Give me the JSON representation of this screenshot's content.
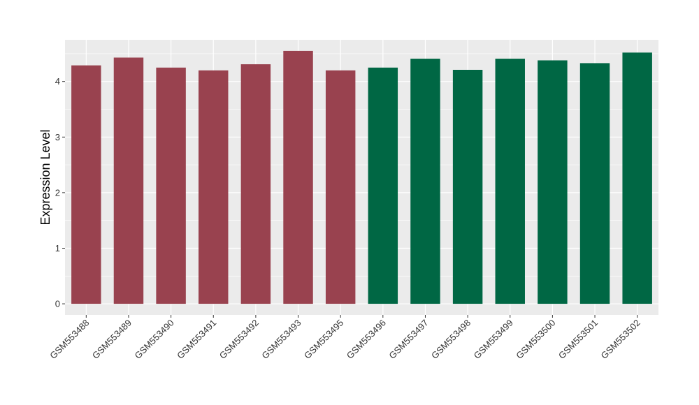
{
  "chart_data": {
    "type": "bar",
    "title": "",
    "xlabel": "",
    "ylabel": "Expression Level",
    "ylim": [
      -0.2,
      4.75
    ],
    "yticks": [
      0,
      1,
      2,
      3,
      4
    ],
    "ytick_labels": [
      "0",
      "1",
      "2",
      "3",
      "4"
    ],
    "grid": true,
    "legend": "none",
    "categories": [
      "GSM553488",
      "GSM553489",
      "GSM553490",
      "GSM553491",
      "GSM553492",
      "GSM553493",
      "GSM553495",
      "GSM553496",
      "GSM553497",
      "GSM553498",
      "GSM553499",
      "GSM553500",
      "GSM553501",
      "GSM553502"
    ],
    "values": [
      4.29,
      4.43,
      4.25,
      4.2,
      4.31,
      4.55,
      4.2,
      4.25,
      4.41,
      4.21,
      4.41,
      4.38,
      4.33,
      4.52
    ],
    "bar_colors": [
      "#99424f",
      "#99424f",
      "#99424f",
      "#99424f",
      "#99424f",
      "#99424f",
      "#99424f",
      "#006744",
      "#006744",
      "#006744",
      "#006744",
      "#006744",
      "#006744",
      "#006744"
    ],
    "panel_background": "#ebebeb",
    "grid_color": "#ffffff"
  }
}
